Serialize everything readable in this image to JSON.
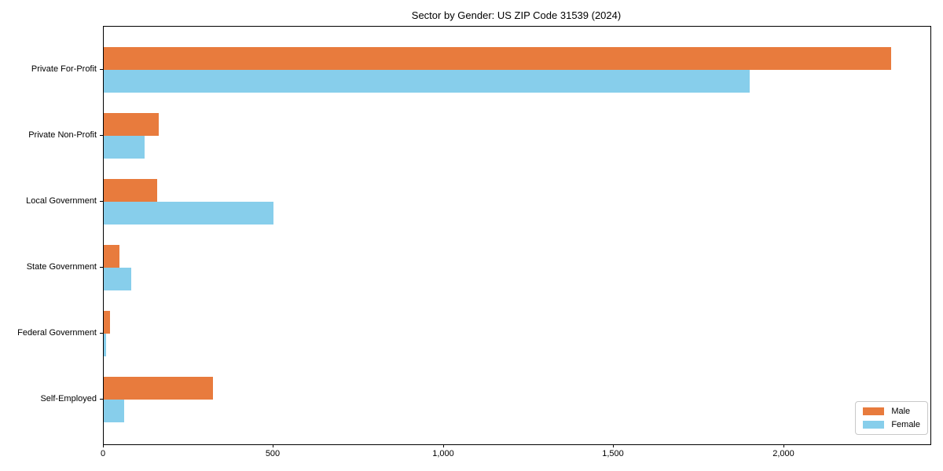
{
  "title": "Sector by Gender: US ZIP Code 31539 (2024)",
  "colors": {
    "male": "#e87b3d",
    "female": "#87ceeb",
    "axis": "#000000",
    "legend_border": "#c9c9c9",
    "background": "#ffffff"
  },
  "chart_data": {
    "type": "bar",
    "orientation": "horizontal",
    "title": "Sector by Gender: US ZIP Code 31539 (2024)",
    "xlabel": "",
    "ylabel": "",
    "categories": [
      "Private For-Profit",
      "Private Non-Profit",
      "Local Government",
      "State Government",
      "Federal Government",
      "Self-Employed"
    ],
    "series": [
      {
        "name": "Male",
        "color": "#e87b3d",
        "values": [
          2315,
          162,
          158,
          47,
          18,
          321
        ]
      },
      {
        "name": "Female",
        "color": "#87ceeb",
        "values": [
          1898,
          119,
          500,
          82,
          8,
          61
        ]
      }
    ],
    "xlim": [
      0,
      2430
    ],
    "xticks": [
      0,
      500,
      1000,
      1500,
      2000
    ],
    "xtick_labels": [
      "0",
      "500",
      "1,000",
      "1,500",
      "2,000"
    ],
    "grid": false,
    "legend": {
      "position": "lower right",
      "entries": [
        "Male",
        "Female"
      ]
    }
  }
}
